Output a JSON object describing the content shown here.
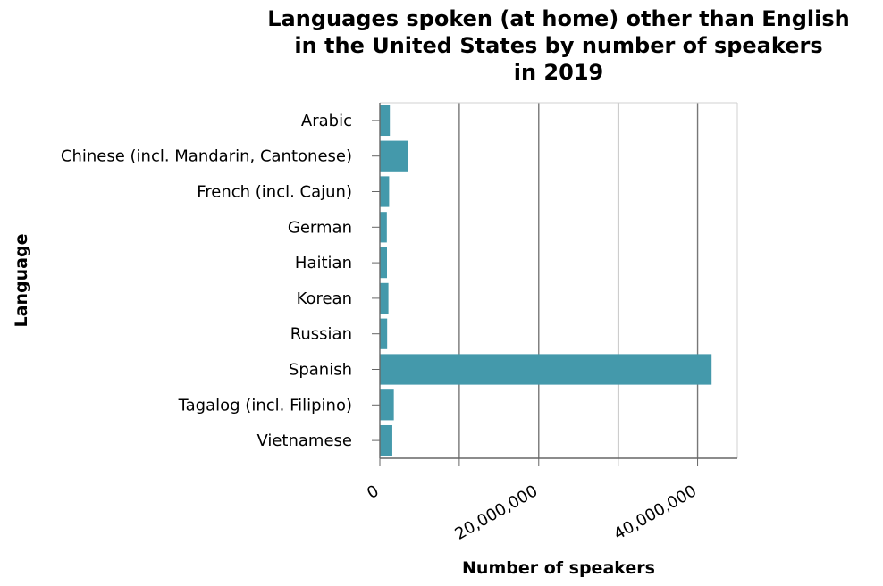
{
  "chart_data": {
    "type": "bar",
    "orientation": "horizontal",
    "title_lines": [
      "Languages spoken (at home) other than English",
      "in the United States by number of speakers",
      "in 2019"
    ],
    "xlabel": "Number of speakers",
    "ylabel": "Language",
    "categories": [
      "Arabic",
      "Chinese (incl. Mandarin, Cantonese)",
      "French (incl. Cajun)",
      "German",
      "Haitian",
      "Korean",
      "Russian",
      "Spanish",
      "Tagalog (incl. Filipino)",
      "Vietnamese"
    ],
    "values": [
      1260000,
      3500000,
      1170000,
      880000,
      900000,
      1080000,
      920000,
      41760000,
      1760000,
      1570000
    ],
    "xticks": [
      0,
      20000000,
      40000000
    ],
    "xtick_labels": [
      "0",
      "20,000,000",
      "40,000,000"
    ],
    "xlim": [
      0,
      45000000
    ],
    "grid": "vertical",
    "bar_color": "#4499ab"
  }
}
